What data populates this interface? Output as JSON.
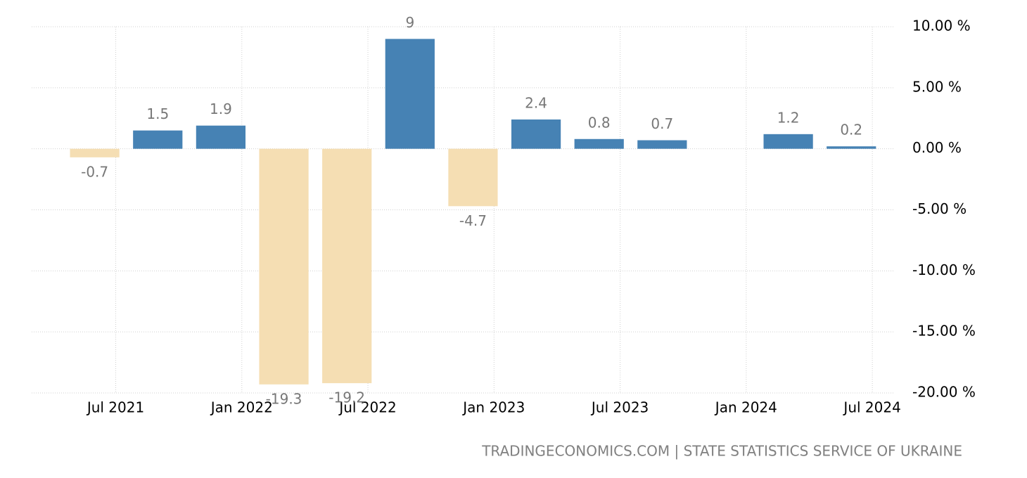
{
  "chart_data": {
    "type": "bar",
    "x": [
      "2021-06",
      "2021-09",
      "2021-12",
      "2022-03",
      "2022-06",
      "2022-09",
      "2022-12",
      "2023-03",
      "2023-06",
      "2023-09",
      "2023-12",
      "2024-03",
      "2024-06"
    ],
    "values": [
      -0.7,
      1.5,
      1.9,
      -19.3,
      -19.2,
      9,
      -4.7,
      2.4,
      0.8,
      0.7,
      null,
      1.2,
      0.2
    ],
    "color": "#4682b4",
    "negative_color": "#f5deb3",
    "xlim": [
      "2021-03",
      "2024-08"
    ],
    "xticks": [
      {
        "value": "2021-07",
        "label": "Jul 2021"
      },
      {
        "value": "2022-01",
        "label": "Jan 2022"
      },
      {
        "value": "2022-07",
        "label": "Jul 2022"
      },
      {
        "value": "2023-01",
        "label": "Jan 2023"
      },
      {
        "value": "2023-07",
        "label": "Jul 2023"
      },
      {
        "value": "2024-01",
        "label": "Jan 2024"
      },
      {
        "value": "2024-07",
        "label": "Jul 2024"
      }
    ],
    "ylim": [
      -20,
      10
    ],
    "yticks": [
      {
        "value": 10,
        "label": "10.00 %"
      },
      {
        "value": 5,
        "label": "5.00 %"
      },
      {
        "value": 0,
        "label": "0.00 %"
      },
      {
        "value": -5,
        "label": "-5.00 %"
      },
      {
        "value": -10,
        "label": "-10.00 %"
      },
      {
        "value": -15,
        "label": "-15.00 %"
      },
      {
        "value": -20,
        "label": "-20.00 %"
      }
    ],
    "grid": true,
    "source": "TRADINGECONOMICS.COM | STATE STATISTICS SERVICE OF UKRAINE"
  }
}
